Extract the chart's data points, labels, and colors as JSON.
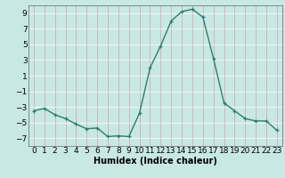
{
  "x": [
    0,
    1,
    2,
    3,
    4,
    5,
    6,
    7,
    8,
    9,
    10,
    11,
    12,
    13,
    14,
    15,
    16,
    17,
    18,
    19,
    20,
    21,
    22,
    23
  ],
  "y": [
    -3.5,
    -3.2,
    -4.0,
    -4.5,
    -5.2,
    -5.8,
    -5.7,
    -6.8,
    -6.7,
    -6.8,
    -3.8,
    2.0,
    4.8,
    8.0,
    9.2,
    9.5,
    8.5,
    3.2,
    -2.5,
    -3.5,
    -4.5,
    -4.8,
    -4.8,
    -6.0
  ],
  "title": "",
  "xlabel": "Humidex (Indice chaleur)",
  "ylabel": "",
  "ylim": [
    -8,
    10
  ],
  "yticks": [
    -7,
    -5,
    -3,
    -1,
    1,
    3,
    5,
    7,
    9
  ],
  "xticks": [
    0,
    1,
    2,
    3,
    4,
    5,
    6,
    7,
    8,
    9,
    10,
    11,
    12,
    13,
    14,
    15,
    16,
    17,
    18,
    19,
    20,
    21,
    22,
    23
  ],
  "line_color": "#2e7d6e",
  "marker_color": "#2e7d6e",
  "bg_color": "#c8e8e4",
  "vgrid_color": "#d4a0a0",
  "hgrid_color": "#ffffff",
  "label_fontsize": 7,
  "tick_fontsize": 6.5
}
